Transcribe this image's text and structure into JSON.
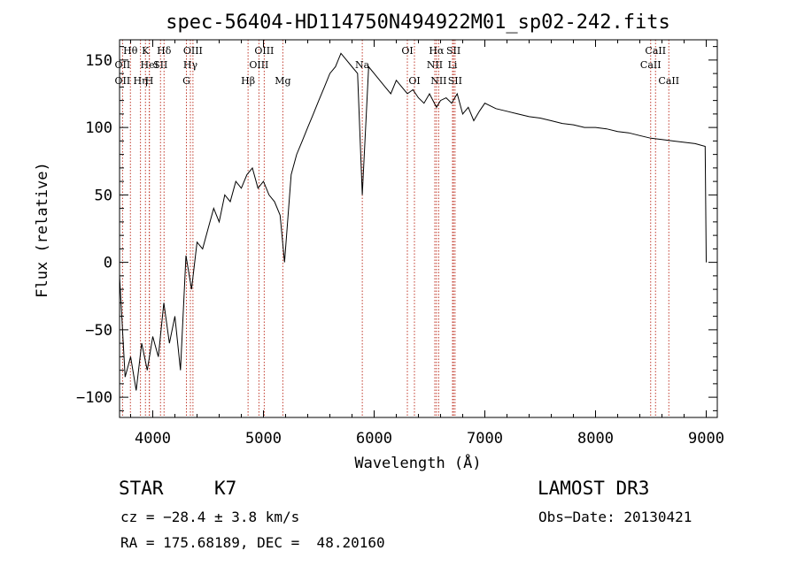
{
  "chart_data": {
    "type": "line",
    "title": "spec-56404-HD114750N494922M01_sp02-242.fits",
    "xlabel": "Wavelength (Å)",
    "ylabel": "Flux (relative)",
    "xlim": [
      3700,
      9100
    ],
    "ylim": [
      -115,
      165
    ],
    "x_ticks": [
      4000,
      5000,
      6000,
      7000,
      8000,
      9000
    ],
    "x_tick_labels": [
      "4000",
      "5000",
      "6000",
      "7000",
      "8000",
      "9000"
    ],
    "y_ticks": [
      -100,
      -50,
      0,
      50,
      100,
      150
    ],
    "y_tick_labels": [
      "−100",
      "−50",
      "0",
      "50",
      "100",
      "150"
    ],
    "grid": false,
    "series": [
      {
        "name": "flux",
        "x": [
          3700,
          3750,
          3800,
          3850,
          3900,
          3950,
          4000,
          4050,
          4100,
          4150,
          4200,
          4250,
          4300,
          4350,
          4400,
          4450,
          4500,
          4550,
          4600,
          4650,
          4700,
          4750,
          4800,
          4850,
          4900,
          4950,
          5000,
          5050,
          5100,
          5150,
          5190,
          5250,
          5300,
          5350,
          5400,
          5450,
          5500,
          5550,
          5600,
          5650,
          5700,
          5750,
          5800,
          5850,
          5893,
          5950,
          6000,
          6050,
          6100,
          6150,
          6200,
          6250,
          6300,
          6350,
          6400,
          6450,
          6500,
          6563,
          6600,
          6650,
          6700,
          6750,
          6800,
          6850,
          6900,
          6950,
          7000,
          7100,
          7200,
          7300,
          7400,
          7500,
          7600,
          7700,
          7800,
          7900,
          8000,
          8100,
          8200,
          8300,
          8400,
          8500,
          8600,
          8700,
          8800,
          8900,
          8990,
          9000
        ],
        "values": [
          -10,
          -85,
          -70,
          -95,
          -60,
          -80,
          -55,
          -70,
          -30,
          -60,
          -40,
          -80,
          5,
          -20,
          15,
          10,
          25,
          40,
          30,
          50,
          45,
          60,
          55,
          65,
          70,
          55,
          60,
          50,
          45,
          35,
          0,
          65,
          80,
          90,
          100,
          110,
          120,
          130,
          140,
          145,
          155,
          150,
          145,
          140,
          50,
          145,
          140,
          135,
          130,
          125,
          135,
          130,
          125,
          128,
          122,
          118,
          125,
          115,
          120,
          122,
          118,
          125,
          110,
          115,
          105,
          112,
          118,
          114,
          112,
          110,
          108,
          107,
          105,
          103,
          102,
          100,
          100,
          99,
          97,
          96,
          94,
          92,
          91,
          90,
          89,
          88,
          86,
          0
        ]
      }
    ],
    "line_markers": [
      {
        "wavelength": 3727,
        "rows": [
          {
            "label": "OII",
            "row": 1
          },
          {
            "label": "OII",
            "row": 2
          }
        ]
      },
      {
        "wavelength": 3798,
        "rows": [
          {
            "label": "Hθ",
            "row": 0
          }
        ]
      },
      {
        "wavelength": 3889,
        "rows": [
          {
            "label": "Hη",
            "row": 2
          }
        ]
      },
      {
        "wavelength": 3934,
        "rows": [
          {
            "label": "K",
            "row": 0
          }
        ]
      },
      {
        "wavelength": 3968,
        "rows": [
          {
            "label": "H",
            "row": 2
          }
        ]
      },
      {
        "wavelength": 3970,
        "rows": [
          {
            "label": "HeI",
            "row": 1
          }
        ]
      },
      {
        "wavelength": 4070,
        "rows": [
          {
            "label": "SII",
            "row": 1
          }
        ]
      },
      {
        "wavelength": 4102,
        "rows": [
          {
            "label": "Hδ",
            "row": 0
          }
        ]
      },
      {
        "wavelength": 4304,
        "rows": [
          {
            "label": "G",
            "row": 2
          }
        ]
      },
      {
        "wavelength": 4340,
        "rows": [
          {
            "label": "Hγ",
            "row": 1
          }
        ]
      },
      {
        "wavelength": 4363,
        "rows": [
          {
            "label": "OIII",
            "row": 0
          }
        ]
      },
      {
        "wavelength": 4861,
        "rows": [
          {
            "label": "Hβ",
            "row": 2
          }
        ]
      },
      {
        "wavelength": 4959,
        "rows": [
          {
            "label": "OIII",
            "row": 1
          }
        ]
      },
      {
        "wavelength": 5007,
        "rows": [
          {
            "label": "OIII",
            "row": 0
          }
        ]
      },
      {
        "wavelength": 5175,
        "rows": [
          {
            "label": "Mg",
            "row": 2
          }
        ]
      },
      {
        "wavelength": 5893,
        "rows": [
          {
            "label": "Na",
            "row": 1
          }
        ]
      },
      {
        "wavelength": 6300,
        "rows": [
          {
            "label": "OI",
            "row": 0
          }
        ]
      },
      {
        "wavelength": 6364,
        "rows": [
          {
            "label": "OI",
            "row": 2
          }
        ]
      },
      {
        "wavelength": 6548,
        "rows": [
          {
            "label": "NII",
            "row": 1
          }
        ]
      },
      {
        "wavelength": 6563,
        "rows": [
          {
            "label": "Hα",
            "row": 0
          }
        ]
      },
      {
        "wavelength": 6583,
        "rows": [
          {
            "label": "NII",
            "row": 2
          }
        ]
      },
      {
        "wavelength": 6708,
        "rows": [
          {
            "label": "Li",
            "row": 1
          }
        ]
      },
      {
        "wavelength": 6717,
        "rows": [
          {
            "label": "SII",
            "row": 0
          }
        ]
      },
      {
        "wavelength": 6731,
        "rows": [
          {
            "label": "SII",
            "row": 2
          }
        ]
      },
      {
        "wavelength": 8498,
        "rows": [
          {
            "label": "CaII",
            "row": 1
          }
        ]
      },
      {
        "wavelength": 8542,
        "rows": [
          {
            "label": "CaII",
            "row": 0
          }
        ]
      },
      {
        "wavelength": 8662,
        "rows": [
          {
            "label": "CaII",
            "row": 2
          }
        ]
      }
    ]
  },
  "info": {
    "object_class": "STAR",
    "subclass": "K7",
    "survey": "LAMOST DR3",
    "redshift": "cz = −28.4 ± 3.8 km/s",
    "obs_date": "Obs−Date: 20130421",
    "coords": "RA = 175.68189, DEC =  48.20160"
  },
  "colors": {
    "foreground": "#000000",
    "marker": "#c0392b",
    "background": "#ffffff"
  }
}
